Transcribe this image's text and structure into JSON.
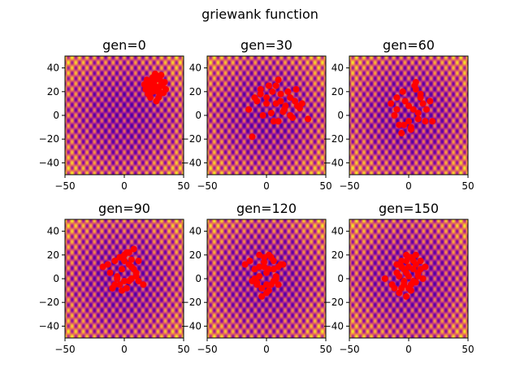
{
  "figure": {
    "title": "griewank function"
  },
  "chart_data": {
    "type": "scatter",
    "background": "heatmap of griewank function (plasma colormap)",
    "colormap": [
      "#3b049a",
      "#7e03a8",
      "#cc4778",
      "#f89540",
      "#f0f921"
    ],
    "point_color": "#ff0000",
    "panels": [
      {
        "title": "gen=0",
        "xlim": [
          -50,
          50
        ],
        "ylim": [
          -50,
          50
        ],
        "xticks": [
          "-50",
          "0",
          "50"
        ],
        "yticks": [
          "40",
          "20",
          "0",
          "-20",
          "-40"
        ],
        "x": [
          18,
          22,
          25,
          28,
          30,
          33,
          20,
          24,
          27,
          31,
          35,
          19,
          23,
          26,
          29,
          32,
          21,
          25,
          28,
          34,
          17,
          22,
          27,
          30,
          24,
          20,
          26,
          31,
          23,
          29,
          33,
          25,
          21,
          28
        ],
        "y": [
          22,
          25,
          28,
          20,
          30,
          27,
          18,
          32,
          24,
          26,
          22,
          30,
          20,
          35,
          15,
          25,
          28,
          22,
          33,
          28,
          26,
          15,
          12,
          18,
          20,
          24,
          30,
          34,
          27,
          22,
          19,
          26,
          20,
          31
        ]
      },
      {
        "title": "gen=30",
        "xlim": [
          -50,
          50
        ],
        "ylim": [
          -50,
          50
        ],
        "xticks": [
          "-50",
          "0",
          "50"
        ],
        "yticks": [
          "40",
          "20",
          "0",
          "-20",
          "-40"
        ],
        "x": [
          -15,
          -10,
          -5,
          0,
          5,
          8,
          12,
          15,
          20,
          25,
          30,
          35,
          -8,
          2,
          10,
          18,
          26,
          -3,
          6,
          14,
          22,
          0,
          8,
          16,
          -12,
          4,
          12,
          24,
          10,
          20,
          -5,
          28
        ],
        "y": [
          5,
          15,
          18,
          10,
          20,
          25,
          12,
          5,
          15,
          22,
          10,
          -3,
          12,
          25,
          30,
          20,
          8,
          0,
          -5,
          3,
          -2,
          15,
          10,
          8,
          -18,
          2,
          18,
          12,
          -5,
          0,
          22,
          6
        ]
      },
      {
        "title": "gen=60",
        "xlim": [
          -50,
          50
        ],
        "ylim": [
          -50,
          50
        ],
        "xticks": [
          "-50",
          "0",
          "50"
        ],
        "yticks": [
          "40",
          "20",
          "0",
          "-20",
          "-40"
        ],
        "x": [
          -15,
          -10,
          -5,
          0,
          5,
          10,
          15,
          20,
          -8,
          2,
          8,
          -12,
          -3,
          6,
          12,
          0,
          4,
          10,
          18,
          -6,
          2,
          8,
          -10,
          -4,
          6,
          14
        ],
        "y": [
          10,
          15,
          20,
          8,
          25,
          18,
          5,
          -5,
          -8,
          -10,
          -3,
          0,
          12,
          22,
          10,
          -5,
          5,
          15,
          12,
          -15,
          -12,
          2,
          5,
          -8,
          28,
          -5
        ]
      },
      {
        "title": "gen=90",
        "xlim": [
          -50,
          50
        ],
        "ylim": [
          -50,
          50
        ],
        "xticks": [
          "-50",
          "0",
          "50"
        ],
        "yticks": [
          "40",
          "20",
          "0",
          "-20",
          "-40"
        ],
        "x": [
          -18,
          -12,
          -8,
          -4,
          0,
          4,
          8,
          12,
          16,
          -10,
          -6,
          -2,
          2,
          6,
          10,
          -14,
          -8,
          -2,
          4,
          10,
          -4,
          2,
          8,
          -6,
          0,
          6,
          12,
          -10,
          -2,
          6,
          0,
          4
        ],
        "y": [
          10,
          5,
          15,
          18,
          20,
          12,
          8,
          15,
          -5,
          -8,
          0,
          8,
          22,
          16,
          2,
          12,
          -5,
          -10,
          -2,
          5,
          -5,
          -8,
          25,
          2,
          15,
          10,
          -2,
          -8,
          18,
          0,
          -2,
          22
        ]
      },
      {
        "title": "gen=120",
        "xlim": [
          -50,
          50
        ],
        "ylim": [
          -50,
          50
        ],
        "xticks": [
          "-50",
          "0",
          "50"
        ],
        "yticks": [
          "40",
          "20",
          "0",
          "-20",
          "-40"
        ],
        "x": [
          -18,
          -14,
          -10,
          -6,
          -2,
          2,
          6,
          10,
          14,
          -8,
          -4,
          0,
          4,
          8,
          -12,
          -6,
          0,
          6,
          12,
          -4,
          2,
          8,
          -8,
          -2,
          4,
          10,
          0,
          -6,
          6,
          -10,
          2,
          -2
        ],
        "y": [
          12,
          15,
          8,
          2,
          18,
          20,
          15,
          10,
          12,
          -3,
          -8,
          -12,
          -5,
          0,
          -2,
          10,
          5,
          8,
          12,
          -15,
          -10,
          2,
          -5,
          14,
          18,
          -5,
          -5,
          20,
          -2,
          0,
          8,
          10
        ]
      },
      {
        "title": "gen=150",
        "xlim": [
          -50,
          50
        ],
        "ylim": [
          -50,
          50
        ],
        "xticks": [
          "-50",
          "0",
          "50"
        ],
        "yticks": [
          "40",
          "20",
          "0",
          "-20",
          "-40"
        ],
        "x": [
          -20,
          -14,
          -10,
          -6,
          -2,
          2,
          6,
          10,
          14,
          -12,
          -8,
          -4,
          0,
          4,
          8,
          12,
          -10,
          -6,
          -2,
          2,
          6,
          10,
          -8,
          -4,
          0,
          4,
          8,
          -6,
          -2,
          2,
          6,
          -4,
          0,
          4,
          -2
        ],
        "y": [
          0,
          -5,
          5,
          10,
          15,
          18,
          20,
          15,
          10,
          -8,
          -12,
          -2,
          2,
          8,
          5,
          0,
          12,
          -8,
          -15,
          -5,
          12,
          8,
          2,
          8,
          -8,
          -2,
          2,
          15,
          20,
          -10,
          -3,
          -5,
          10,
          15,
          5
        ]
      }
    ]
  }
}
